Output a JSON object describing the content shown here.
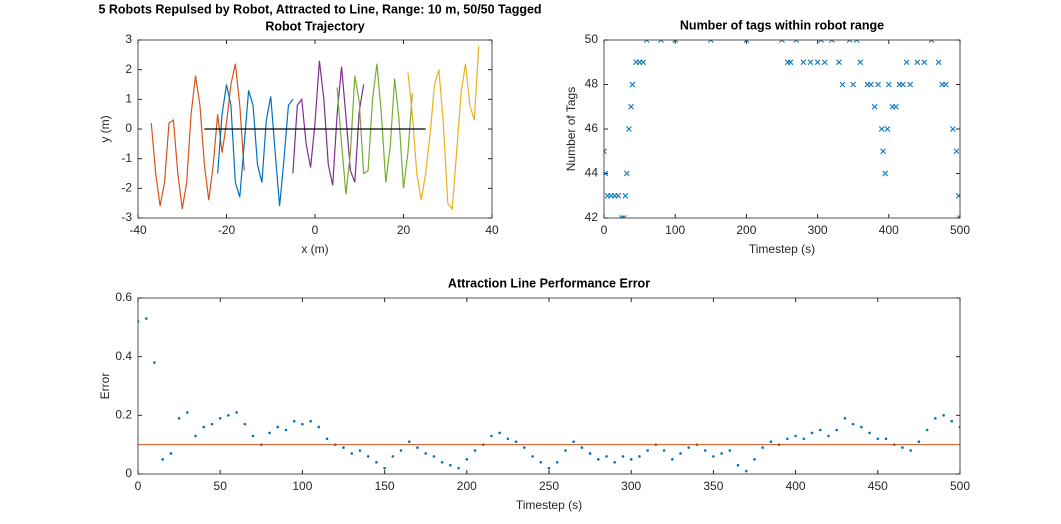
{
  "title": "5 Robots Repulsed by Robot, Attracted to Line, Range: 10 m, 50/50 Tagged",
  "chart_data": [
    {
      "type": "line",
      "title": "Robot Trajectory",
      "xlabel": "x (m)",
      "ylabel": "y (m)",
      "xlim": [
        -40,
        40
      ],
      "ylim": [
        -3,
        3
      ],
      "xticks": [
        -40,
        -20,
        0,
        20,
        40
      ],
      "yticks": [
        -3,
        -2,
        -1,
        0,
        1,
        2,
        3
      ],
      "series": [
        {
          "color": "#D95319",
          "marker": "line",
          "x": [
            -37,
            -36,
            -35,
            -34,
            -33,
            -32,
            -31,
            -30,
            -29,
            -28,
            -27,
            -26,
            -25,
            -24,
            -23,
            -22,
            -21,
            -20,
            -19,
            -18,
            -17,
            -16
          ],
          "values": [
            0.2,
            -1.5,
            -2.6,
            -1.8,
            0.2,
            0.3,
            -1.5,
            -2.7,
            -1.8,
            0.5,
            1.8,
            0.8,
            -1.2,
            -2.4,
            -1.2,
            0.5,
            -0.8,
            0.2,
            1.5,
            2.2,
            0.8,
            -1.4
          ]
        },
        {
          "color": "#0072BD",
          "marker": "line",
          "x": [
            -22,
            -21,
            -20,
            -19,
            -18,
            -17,
            -16,
            -15,
            -14,
            -13,
            -12,
            -11,
            -10,
            -9,
            -8,
            -7,
            -6,
            -5
          ],
          "values": [
            -1.5,
            0.5,
            1.5,
            0.8,
            -1.8,
            -2.3,
            -0.5,
            1.3,
            0.8,
            -1.2,
            -1.8,
            0.3,
            1.1,
            -0.8,
            -2.6,
            -1.0,
            0.8,
            1.0
          ]
        },
        {
          "color": "#7E2F8E",
          "marker": "line",
          "x": [
            -5,
            -4,
            -3,
            -2,
            -1,
            0,
            1,
            2,
            3,
            4,
            5,
            6,
            7,
            8,
            9,
            10,
            11
          ],
          "values": [
            -1.5,
            0.8,
            1.0,
            -0.5,
            -1.3,
            0.2,
            2.3,
            1.0,
            -1.2,
            -1.9,
            0.5,
            2.1,
            0.4,
            -1.4,
            -1.8,
            0.6,
            1.5
          ]
        },
        {
          "color": "#77AC30",
          "marker": "line",
          "x": [
            5,
            6,
            7,
            8,
            9,
            10,
            11,
            12,
            13,
            14,
            15,
            16,
            17,
            18,
            19,
            20,
            21,
            22
          ],
          "values": [
            1.4,
            -0.5,
            -2.2,
            -0.8,
            1.8,
            0.9,
            -1.5,
            -1.4,
            1.0,
            2.2,
            0.5,
            -1.8,
            -0.6,
            1.7,
            0.3,
            -2.0,
            -0.8,
            1.2
          ]
        },
        {
          "color": "#EDB120",
          "marker": "line",
          "x": [
            21,
            22,
            23,
            24,
            25,
            26,
            27,
            28,
            29,
            30,
            31,
            32,
            33,
            34,
            35,
            36,
            37
          ],
          "values": [
            1.9,
            0.5,
            -1.5,
            -2.4,
            -1.5,
            -0.2,
            1.5,
            2.0,
            0.2,
            -2.5,
            -2.7,
            -0.8,
            1.2,
            2.2,
            0.8,
            0.3,
            2.8
          ]
        },
        {
          "color": "#000000",
          "marker": "line",
          "x": [
            -25,
            25
          ],
          "values": [
            0,
            0
          ]
        }
      ]
    },
    {
      "type": "scatter",
      "title": "Number of tags within robot range",
      "xlabel": "Timestep (s)",
      "ylabel": "Number of Tags",
      "xlim": [
        0,
        500
      ],
      "ylim": [
        42,
        50
      ],
      "xticks": [
        0,
        100,
        200,
        300,
        400,
        500
      ],
      "yticks": [
        42,
        44,
        46,
        48,
        50
      ],
      "series": [
        {
          "color": "#0072BD",
          "marker": "x",
          "x": [
            0,
            2,
            5,
            10,
            15,
            20,
            25,
            28,
            30,
            32,
            35,
            38,
            40,
            45,
            50,
            55,
            60,
            80,
            100,
            150,
            200,
            250,
            258,
            262,
            270,
            280,
            290,
            300,
            305,
            310,
            320,
            330,
            335,
            345,
            350,
            355,
            360,
            370,
            375,
            380,
            385,
            390,
            392,
            395,
            398,
            400,
            405,
            410,
            415,
            420,
            425,
            430,
            440,
            450,
            460,
            470,
            475,
            480,
            490,
            495,
            498,
            500
          ],
          "values": [
            45,
            44,
            43,
            43,
            43,
            43,
            42,
            42,
            43,
            44,
            46,
            47,
            48,
            49,
            49,
            49,
            50,
            50,
            50,
            50,
            50,
            50,
            49,
            49,
            50,
            49,
            49,
            49,
            50,
            49,
            50,
            49,
            48,
            50,
            48,
            50,
            49,
            48,
            48,
            47,
            48,
            46,
            45,
            44,
            46,
            48,
            47,
            47,
            48,
            48,
            49,
            48,
            49,
            49,
            50,
            49,
            48,
            48,
            46,
            45,
            43,
            42
          ]
        }
      ]
    },
    {
      "type": "scatter",
      "title": "Attraction Line Performance Error",
      "xlabel": "Timestep (s)",
      "ylabel": "Error",
      "xlim": [
        0,
        500
      ],
      "ylim": [
        0,
        0.6
      ],
      "xticks": [
        0,
        50,
        100,
        150,
        200,
        250,
        300,
        350,
        400,
        450,
        500
      ],
      "yticks": [
        0,
        0.2,
        0.4,
        0.6
      ],
      "series": [
        {
          "color": "#0072BD",
          "marker": "dot",
          "x": [
            0,
            5,
            10,
            15,
            20,
            25,
            30,
            35,
            40,
            45,
            50,
            55,
            60,
            65,
            70,
            75,
            80,
            85,
            90,
            95,
            100,
            105,
            110,
            115,
            120,
            125,
            130,
            135,
            140,
            145,
            150,
            155,
            160,
            165,
            170,
            175,
            180,
            185,
            190,
            195,
            200,
            205,
            210,
            215,
            220,
            225,
            230,
            235,
            240,
            245,
            250,
            255,
            260,
            265,
            270,
            275,
            280,
            285,
            290,
            295,
            300,
            305,
            310,
            315,
            320,
            325,
            330,
            335,
            340,
            345,
            350,
            355,
            360,
            365,
            370,
            375,
            380,
            385,
            390,
            395,
            400,
            405,
            410,
            415,
            420,
            425,
            430,
            435,
            440,
            445,
            450,
            455,
            460,
            465,
            470,
            475,
            480,
            485,
            490,
            495,
            500
          ],
          "values": [
            0.52,
            0.53,
            0.38,
            0.05,
            0.07,
            0.19,
            0.21,
            0.13,
            0.16,
            0.17,
            0.19,
            0.2,
            0.21,
            0.17,
            0.13,
            0.1,
            0.14,
            0.16,
            0.15,
            0.18,
            0.17,
            0.18,
            0.16,
            0.12,
            0.1,
            0.09,
            0.07,
            0.08,
            0.06,
            0.04,
            0.02,
            0.06,
            0.08,
            0.11,
            0.09,
            0.07,
            0.06,
            0.04,
            0.03,
            0.02,
            0.05,
            0.08,
            0.1,
            0.13,
            0.14,
            0.12,
            0.11,
            0.09,
            0.06,
            0.04,
            0.02,
            0.04,
            0.08,
            0.11,
            0.09,
            0.07,
            0.05,
            0.06,
            0.04,
            0.06,
            0.05,
            0.06,
            0.08,
            0.1,
            0.08,
            0.05,
            0.07,
            0.09,
            0.1,
            0.08,
            0.06,
            0.07,
            0.08,
            0.03,
            0.01,
            0.05,
            0.09,
            0.11,
            0.1,
            0.12,
            0.13,
            0.12,
            0.14,
            0.15,
            0.13,
            0.15,
            0.19,
            0.17,
            0.16,
            0.14,
            0.12,
            0.12,
            0.1,
            0.09,
            0.08,
            0.11,
            0.15,
            0.19,
            0.2,
            0.18,
            0.16
          ]
        },
        {
          "color": "#D95319",
          "marker": "line",
          "x": [
            0,
            500
          ],
          "values": [
            0.1,
            0.1
          ]
        }
      ]
    }
  ]
}
